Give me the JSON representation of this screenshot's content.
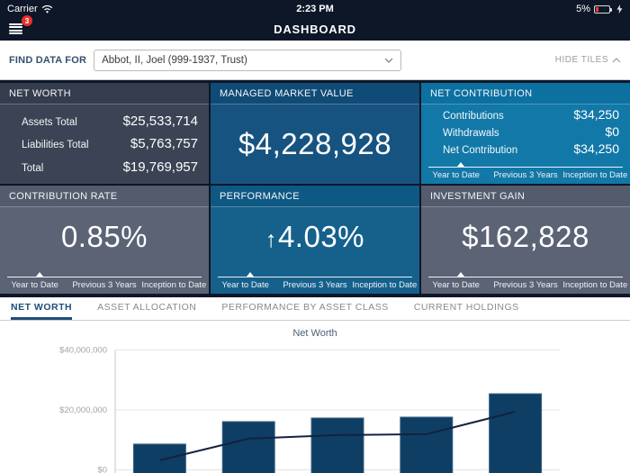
{
  "status_bar": {
    "carrier": "Carrier",
    "time": "2:23 PM",
    "battery_percent": "5%"
  },
  "nav": {
    "title": "DASHBOARD",
    "badge_count": "3"
  },
  "find_bar": {
    "label": "FIND DATA FOR",
    "selected_value": "Abbot, II, Joel (999-1937, Trust)",
    "hide_tiles_label": "HIDE TILES"
  },
  "tiles": {
    "net_worth": {
      "title": "NET WORTH",
      "rows": [
        {
          "label": "Assets Total",
          "value": "$25,533,714"
        },
        {
          "label": "Liabilities Total",
          "value": "$5,763,757"
        },
        {
          "label": "Total",
          "value": "$19,769,957"
        }
      ]
    },
    "managed_market_value": {
      "title": "MANAGED MARKET VALUE",
      "value": "$4,228,928"
    },
    "net_contribution": {
      "title": "NET CONTRIBUTION",
      "rows": [
        {
          "label": "Contributions",
          "value": "$34,250"
        },
        {
          "label": "Withdrawals",
          "value": "$0"
        },
        {
          "label": "Net Contribution",
          "value": "$34,250"
        }
      ],
      "period_tabs": [
        "Year to Date",
        "Previous 3 Years",
        "Inception to Date"
      ],
      "selected_period": "Year to Date"
    },
    "contribution_rate": {
      "title": "CONTRIBUTION RATE",
      "value": "0.85%",
      "period_tabs": [
        "Year to Date",
        "Previous 3 Years",
        "Inception to Date"
      ],
      "selected_period": "Year to Date"
    },
    "performance": {
      "title": "PERFORMANCE",
      "arrow": "↑",
      "value": "4.03%",
      "period_tabs": [
        "Year to Date",
        "Previous 3 Years",
        "Inception to Date"
      ],
      "selected_period": "Year to Date"
    },
    "investment_gain": {
      "title": "INVESTMENT GAIN",
      "value": "$162,828",
      "period_tabs": [
        "Year to Date",
        "Previous 3 Years",
        "Inception to Date"
      ],
      "selected_period": "Year to Date"
    }
  },
  "section_tabs": {
    "items": [
      {
        "label": "NET WORTH",
        "active": true
      },
      {
        "label": "ASSET ALLOCATION",
        "active": false
      },
      {
        "label": "PERFORMANCE BY ASSET CLASS",
        "active": false
      },
      {
        "label": "CURRENT HOLDINGS",
        "active": false
      }
    ]
  },
  "chart_data": {
    "type": "bar",
    "title": "Net Worth",
    "x": [
      1,
      2,
      3,
      4,
      5
    ],
    "x_labels_visible": false,
    "series": [
      {
        "name": "Net Worth bars",
        "type": "bar",
        "values": [
          8600000,
          16100000,
          17300000,
          17600000,
          25400000
        ]
      },
      {
        "name": "Trend line",
        "type": "line",
        "values": [
          3200000,
          10400000,
          11600000,
          11900000,
          19400000
        ]
      }
    ],
    "ylim": [
      0,
      40000000
    ],
    "yticks": [
      {
        "value": 40000000,
        "label": "$40,000,000"
      },
      {
        "value": 20000000,
        "label": "$20,000,000"
      },
      {
        "value": 0,
        "label": "$0"
      }
    ],
    "grid": true,
    "legend": false,
    "bar_color": "#0e3e63",
    "bar_stroke_color": "#3d6485",
    "line_color": "#13223f",
    "note": "bottom of plot (x-axis labels) cropped by viewport"
  },
  "colors": {
    "nav_background": "#0d1728",
    "badge_red": "#e8302a",
    "active_tab_blue": "#1d4e79",
    "tile_slate_dark": "#3b4354",
    "tile_blue_dark": "#175380",
    "tile_blue_light": "#1278a8",
    "tile_slate": "#5b6375",
    "tile_blue_mid": "#15618c"
  }
}
